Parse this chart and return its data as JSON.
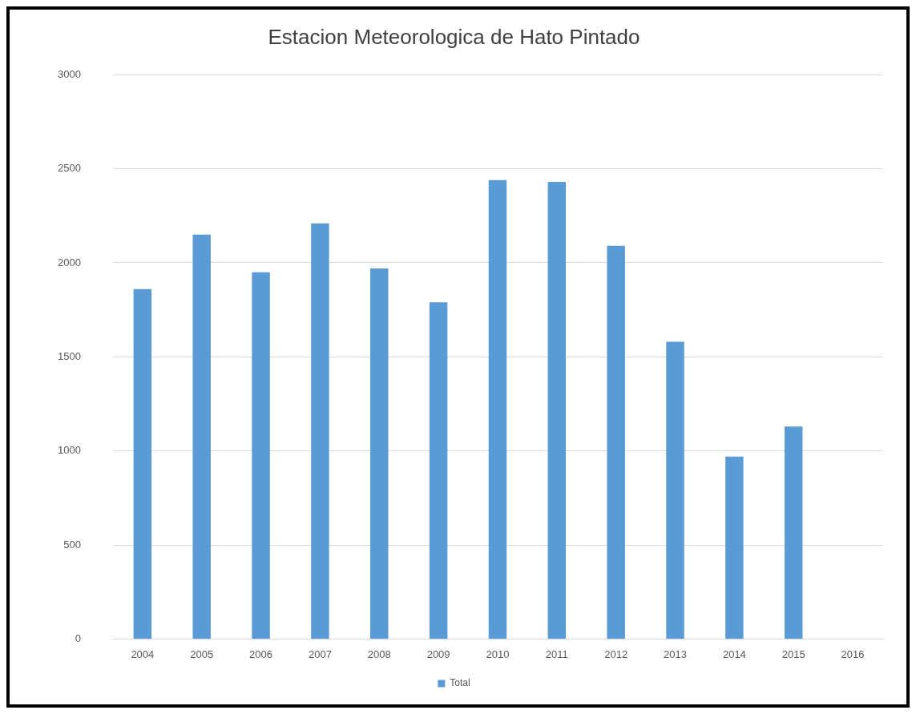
{
  "chart_data": {
    "type": "bar",
    "title": "Estacion Meteorologica de Hato Pintado",
    "categories": [
      "2004",
      "2005",
      "2006",
      "2007",
      "2008",
      "2009",
      "2010",
      "2011",
      "2012",
      "2013",
      "2014",
      "2015",
      "2016"
    ],
    "series": [
      {
        "name": "Total",
        "color": "#5b9bd5",
        "values": [
          1860,
          2150,
          1950,
          2210,
          1970,
          1790,
          2440,
          2430,
          2090,
          1580,
          970,
          1130,
          null
        ]
      }
    ],
    "ylim": [
      0,
      3000
    ],
    "yticks": [
      0,
      500,
      1000,
      1500,
      2000,
      2500,
      3000
    ],
    "grid": "y",
    "legend": "bottom"
  }
}
